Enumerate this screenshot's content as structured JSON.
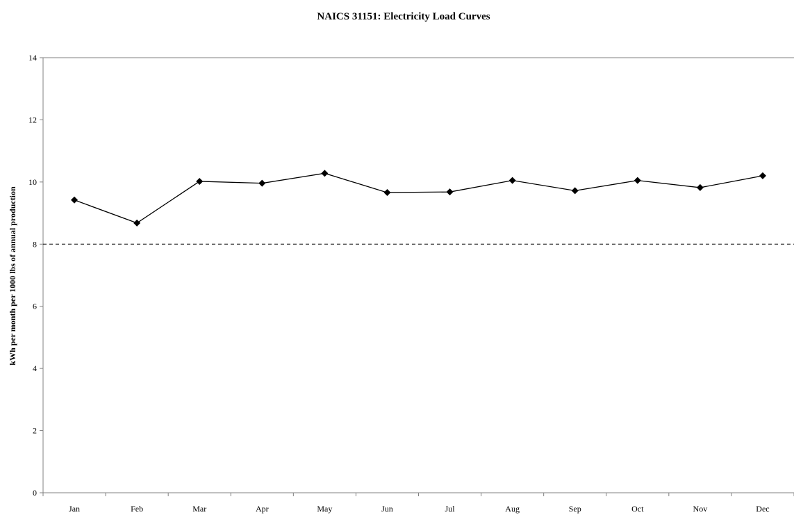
{
  "chart_data": {
    "type": "line",
    "title": "NAICS 31151: Electricity Load Curves",
    "xlabel": "",
    "ylabel": "kWh per month per 1000 lbs of annual production",
    "categories": [
      "Jan",
      "Feb",
      "Mar",
      "Apr",
      "May",
      "Jun",
      "Jul",
      "Aug",
      "Sep",
      "Oct",
      "Nov",
      "Dec"
    ],
    "series": [
      {
        "values": [
          9.42,
          8.68,
          10.02,
          9.96,
          10.28,
          9.66,
          9.68,
          10.05,
          9.72,
          10.05,
          9.82,
          10.2
        ]
      }
    ],
    "reference_line": {
      "value": 8,
      "style": "dashed"
    },
    "yticks": [
      0,
      2,
      4,
      6,
      8,
      10,
      12,
      14
    ],
    "ylim": [
      0,
      14
    ],
    "grid": false,
    "legend": "none",
    "marker": "diamond",
    "colors": {
      "line": "#000000",
      "marker": "#000000",
      "axis": "#808080"
    }
  }
}
